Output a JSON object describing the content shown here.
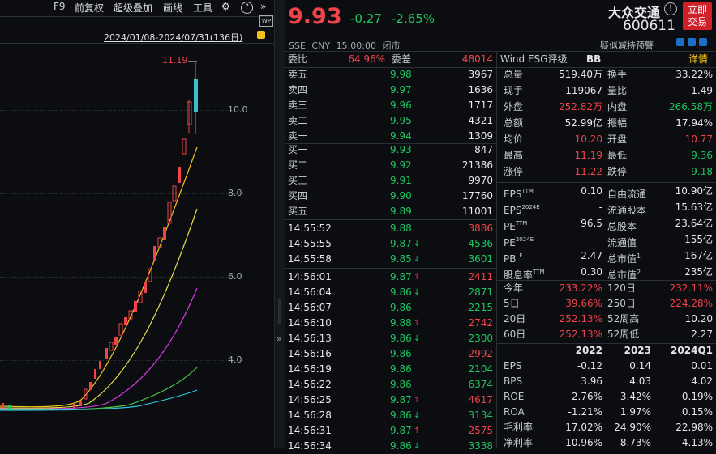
{
  "toolbar": {
    "items": [
      "F9",
      "前复权",
      "超级叠加",
      "画线",
      "工具"
    ],
    "date_range": "2024/01/08-2024/07/31(136日)"
  },
  "chart": {
    "y_ticks": [
      "10.0",
      "8.0",
      "6.0",
      "4.0"
    ],
    "high_label": "11.19"
  },
  "quote": {
    "price": "9.93",
    "change": "-0.27",
    "change_pct": "-2.65%",
    "exchange": "SSE",
    "currency": "CNY",
    "time": "15:00:00",
    "status": "闭市",
    "name": "大众交通",
    "code": "600611",
    "trade_button": "立即交易",
    "extra_label": "疑似减持预警"
  },
  "order_book": {
    "weibi_label": "委比",
    "weibi": "64.96%",
    "weicha_label": "委差",
    "weicha": "48014",
    "asks": [
      {
        "label": "卖五",
        "price": "9.98",
        "vol": "3967"
      },
      {
        "label": "卖四",
        "price": "9.97",
        "vol": "1636"
      },
      {
        "label": "卖三",
        "price": "9.96",
        "vol": "1717"
      },
      {
        "label": "卖二",
        "price": "9.95",
        "vol": "4321"
      },
      {
        "label": "卖一",
        "price": "9.94",
        "vol": "1309"
      }
    ],
    "bids": [
      {
        "label": "买一",
        "price": "9.93",
        "vol": "847"
      },
      {
        "label": "买二",
        "price": "9.92",
        "vol": "21386"
      },
      {
        "label": "买三",
        "price": "9.91",
        "vol": "9970"
      },
      {
        "label": "买四",
        "price": "9.90",
        "vol": "17760"
      },
      {
        "label": "买五",
        "price": "9.89",
        "vol": "11001"
      }
    ]
  },
  "ticks": [
    {
      "time": "14:55:52",
      "price": "9.88",
      "dir": "",
      "vol": "3886",
      "vc": "red"
    },
    {
      "time": "14:55:55",
      "price": "9.87",
      "dir": "down",
      "vol": "4536",
      "vc": "green"
    },
    {
      "time": "14:55:58",
      "price": "9.85",
      "dir": "down",
      "vol": "3601",
      "vc": "green"
    },
    {
      "time": "14:56:01",
      "price": "9.87",
      "dir": "up",
      "vol": "2411",
      "vc": "red"
    },
    {
      "time": "14:56:04",
      "price": "9.86",
      "dir": "down",
      "vol": "2871",
      "vc": "green"
    },
    {
      "time": "14:56:07",
      "price": "9.86",
      "dir": "",
      "vol": "2215",
      "vc": "green"
    },
    {
      "time": "14:56:10",
      "price": "9.88",
      "dir": "up",
      "vol": "2742",
      "vc": "red"
    },
    {
      "time": "14:56:13",
      "price": "9.86",
      "dir": "down",
      "vol": "2300",
      "vc": "green"
    },
    {
      "time": "14:56:16",
      "price": "9.86",
      "dir": "",
      "vol": "2992",
      "vc": "red"
    },
    {
      "time": "14:56:19",
      "price": "9.86",
      "dir": "",
      "vol": "2104",
      "vc": "green"
    },
    {
      "time": "14:56:22",
      "price": "9.86",
      "dir": "",
      "vol": "6374",
      "vc": "green"
    },
    {
      "time": "14:56:25",
      "price": "9.87",
      "dir": "up",
      "vol": "4617",
      "vc": "red"
    },
    {
      "time": "14:56:28",
      "price": "9.86",
      "dir": "down",
      "vol": "3134",
      "vc": "green"
    },
    {
      "time": "14:56:31",
      "price": "9.87",
      "dir": "up",
      "vol": "2575",
      "vc": "red"
    },
    {
      "time": "14:56:34",
      "price": "9.86",
      "dir": "down",
      "vol": "3338",
      "vc": "green"
    }
  ],
  "rating": {
    "label": "Wind ESG评级",
    "value": "BB",
    "detail": "详情"
  },
  "stats1": [
    {
      "l": "总量",
      "v": "519.40万",
      "vc": "white",
      "l2": "换手",
      "v2": "33.22%",
      "vc2": "white"
    },
    {
      "l": "现手",
      "v": "119067",
      "vc": "white",
      "l2": "量比",
      "v2": "1.49",
      "vc2": "white"
    },
    {
      "l": "外盘",
      "v": "252.82万",
      "vc": "red",
      "l2": "内盘",
      "v2": "266.58万",
      "vc2": "green"
    },
    {
      "l": "总额",
      "v": "52.99亿",
      "vc": "white",
      "l2": "振幅",
      "v2": "17.94%",
      "vc2": "white"
    },
    {
      "l": "均价",
      "v": "10.20",
      "vc": "red",
      "l2": "开盘",
      "v2": "10.77",
      "vc2": "red"
    },
    {
      "l": "最高",
      "v": "11.19",
      "vc": "red",
      "l2": "最低",
      "v2": "9.36",
      "vc2": "green"
    },
    {
      "l": "涨停",
      "v": "11.22",
      "vc": "red",
      "l2": "跌停",
      "v2": "9.18",
      "vc2": "green"
    }
  ],
  "stats2": [
    {
      "l": "EPS",
      "sup": "TTM",
      "v": "0.10",
      "l2": "自由流通",
      "sup2": "",
      "v2": "10.90亿"
    },
    {
      "l": "EPS",
      "sup": "2024E",
      "v": "-",
      "l2": "流通股本",
      "sup2": "",
      "v2": "15.63亿"
    },
    {
      "l": "PE",
      "sup": "TTM",
      "v": "96.5",
      "l2": "总股本",
      "sup2": "",
      "v2": "23.64亿"
    },
    {
      "l": "PE",
      "sup": "2024E",
      "v": "-",
      "l2": "流通值",
      "sup2": "",
      "v2": "155亿"
    },
    {
      "l": "PB",
      "sup": "LF",
      "v": "2.47",
      "l2": "总市值",
      "sup2": "1",
      "v2": "167亿"
    },
    {
      "l": "股息率",
      "sup": "TTM",
      "v": "0.30",
      "l2": "总市值",
      "sup2": "2",
      "v2": "235亿"
    }
  ],
  "perf": [
    {
      "l": "今年",
      "v": "233.22%",
      "vc": "red",
      "l2": "120日",
      "v2": "232.11%",
      "vc2": "red"
    },
    {
      "l": "5日",
      "v": "39.66%",
      "vc": "red",
      "l2": "250日",
      "v2": "224.28%",
      "vc2": "red"
    },
    {
      "l": "20日",
      "v": "252.13%",
      "vc": "red",
      "l2": "52周高",
      "v2": "10.20",
      "vc2": "white"
    },
    {
      "l": "60日",
      "v": "252.13%",
      "vc": "red",
      "l2": "52周低",
      "v2": "2.27",
      "vc2": "white"
    }
  ],
  "fin": {
    "years": [
      "2022",
      "2023",
      "2024Q1"
    ],
    "rows": [
      {
        "l": "EPS",
        "v": [
          "-0.12",
          "0.14",
          "0.01"
        ]
      },
      {
        "l": "BPS",
        "v": [
          "3.96",
          "4.03",
          "4.02"
        ]
      },
      {
        "l": "ROE",
        "v": [
          "-2.76%",
          "3.42%",
          "0.19%"
        ]
      },
      {
        "l": "ROA",
        "v": [
          "-1.21%",
          "1.97%",
          "0.15%"
        ]
      },
      {
        "l": "毛利率",
        "v": [
          "17.02%",
          "24.90%",
          "22.98%"
        ]
      },
      {
        "l": "净利率",
        "v": [
          "-10.96%",
          "8.73%",
          "4.13%"
        ]
      }
    ]
  },
  "colors": {
    "up": "#f0434a",
    "down": "#1ec55f",
    "bg": "#0b0d11",
    "accent": "#f3c219"
  }
}
